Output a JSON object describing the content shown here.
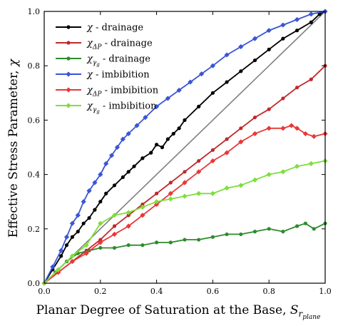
{
  "chart_data": {
    "type": "line",
    "xlabel": "Planar Degree of Saturation at the Base, ",
    "xlabel_symbol": "S",
    "xlabel_sub": "r",
    "xlabel_subsub": "plane",
    "ylabel": "Effective Stress Parameter, ",
    "ylabel_symbol": "χ",
    "xlim": [
      0,
      1.0
    ],
    "ylim": [
      0,
      1.0
    ],
    "xticks": [
      "0.0",
      "0.2",
      "0.4",
      "0.6",
      "0.8",
      "1.0"
    ],
    "yticks": [
      "0.0",
      "0.2",
      "0.4",
      "0.6",
      "0.8",
      "1.0"
    ],
    "legend_position": "top-left",
    "reference_line": {
      "x": [
        0,
        1.0
      ],
      "y": [
        0,
        1.0
      ],
      "color": "#808080"
    },
    "series": [
      {
        "legend_symbol": "χ",
        "legend_sub": "",
        "legend_suffix": " - drainage",
        "color": "#000000",
        "marker": "circle",
        "x": [
          0.0,
          0.03,
          0.06,
          0.08,
          0.1,
          0.12,
          0.14,
          0.16,
          0.18,
          0.2,
          0.22,
          0.25,
          0.28,
          0.3,
          0.32,
          0.35,
          0.38,
          0.4,
          0.42,
          0.44,
          0.46,
          0.48,
          0.5,
          0.55,
          0.6,
          0.65,
          0.7,
          0.75,
          0.8,
          0.85,
          0.9,
          0.95,
          0.98,
          1.0
        ],
        "y": [
          0.0,
          0.05,
          0.1,
          0.14,
          0.17,
          0.19,
          0.22,
          0.24,
          0.27,
          0.3,
          0.33,
          0.36,
          0.39,
          0.41,
          0.43,
          0.46,
          0.48,
          0.51,
          0.5,
          0.53,
          0.55,
          0.57,
          0.6,
          0.65,
          0.7,
          0.74,
          0.78,
          0.82,
          0.86,
          0.9,
          0.93,
          0.96,
          0.99,
          1.0
        ]
      },
      {
        "legend_symbol": "χ",
        "legend_sub": "ΔP",
        "legend_suffix": " - drainage",
        "color": "#c0282a",
        "marker": "circle",
        "x": [
          0.0,
          0.05,
          0.1,
          0.15,
          0.2,
          0.25,
          0.3,
          0.35,
          0.4,
          0.45,
          0.5,
          0.55,
          0.6,
          0.65,
          0.7,
          0.75,
          0.8,
          0.85,
          0.9,
          0.95,
          1.0
        ],
        "y": [
          0.0,
          0.04,
          0.08,
          0.12,
          0.16,
          0.21,
          0.25,
          0.29,
          0.33,
          0.37,
          0.41,
          0.45,
          0.49,
          0.53,
          0.57,
          0.61,
          0.64,
          0.68,
          0.72,
          0.75,
          0.8
        ]
      },
      {
        "legend_symbol": "χ",
        "legend_sub": "γ",
        "legend_subsub": "g",
        "legend_suffix": " - drainage",
        "color": "#2e8b2e",
        "marker": "circle",
        "x": [
          0.0,
          0.04,
          0.08,
          0.12,
          0.16,
          0.2,
          0.25,
          0.3,
          0.35,
          0.4,
          0.45,
          0.5,
          0.55,
          0.6,
          0.65,
          0.7,
          0.75,
          0.8,
          0.85,
          0.9,
          0.93,
          0.96,
          1.0
        ],
        "y": [
          0.0,
          0.04,
          0.08,
          0.11,
          0.12,
          0.13,
          0.13,
          0.14,
          0.14,
          0.15,
          0.15,
          0.16,
          0.16,
          0.17,
          0.18,
          0.18,
          0.19,
          0.2,
          0.19,
          0.21,
          0.22,
          0.2,
          0.22
        ]
      },
      {
        "legend_symbol": "χ",
        "legend_sub": "",
        "legend_suffix": " - imbibition",
        "color": "#3a55d6",
        "marker": "diamond",
        "x": [
          0.0,
          0.03,
          0.06,
          0.08,
          0.1,
          0.12,
          0.14,
          0.16,
          0.18,
          0.2,
          0.22,
          0.24,
          0.26,
          0.28,
          0.3,
          0.33,
          0.36,
          0.4,
          0.44,
          0.48,
          0.52,
          0.56,
          0.6,
          0.65,
          0.7,
          0.75,
          0.8,
          0.85,
          0.9,
          0.95,
          1.0
        ],
        "y": [
          0.0,
          0.06,
          0.12,
          0.17,
          0.22,
          0.25,
          0.3,
          0.34,
          0.37,
          0.4,
          0.44,
          0.47,
          0.5,
          0.53,
          0.55,
          0.58,
          0.61,
          0.65,
          0.68,
          0.71,
          0.74,
          0.77,
          0.8,
          0.84,
          0.87,
          0.9,
          0.93,
          0.95,
          0.97,
          0.99,
          1.0
        ]
      },
      {
        "legend_symbol": "χ",
        "legend_sub": "ΔP",
        "legend_suffix": " - imbibition",
        "color": "#e83838",
        "marker": "diamond",
        "x": [
          0.0,
          0.05,
          0.1,
          0.15,
          0.2,
          0.25,
          0.3,
          0.35,
          0.4,
          0.45,
          0.5,
          0.55,
          0.6,
          0.65,
          0.7,
          0.75,
          0.8,
          0.85,
          0.88,
          0.9,
          0.93,
          0.96,
          1.0
        ],
        "y": [
          0.0,
          0.04,
          0.08,
          0.11,
          0.15,
          0.18,
          0.21,
          0.25,
          0.29,
          0.33,
          0.37,
          0.41,
          0.45,
          0.48,
          0.52,
          0.55,
          0.57,
          0.57,
          0.58,
          0.57,
          0.55,
          0.54,
          0.55
        ]
      },
      {
        "legend_symbol": "χ",
        "legend_sub": "γ",
        "legend_subsub": "g",
        "legend_suffix": " - imbibition",
        "color": "#7ede3a",
        "marker": "diamond",
        "x": [
          0.0,
          0.05,
          0.1,
          0.15,
          0.2,
          0.25,
          0.3,
          0.35,
          0.4,
          0.45,
          0.5,
          0.55,
          0.6,
          0.65,
          0.7,
          0.75,
          0.8,
          0.85,
          0.9,
          0.95,
          1.0
        ],
        "y": [
          0.0,
          0.05,
          0.1,
          0.14,
          0.22,
          0.25,
          0.26,
          0.28,
          0.3,
          0.31,
          0.32,
          0.33,
          0.33,
          0.35,
          0.36,
          0.38,
          0.4,
          0.41,
          0.43,
          0.44,
          0.45
        ]
      }
    ]
  }
}
